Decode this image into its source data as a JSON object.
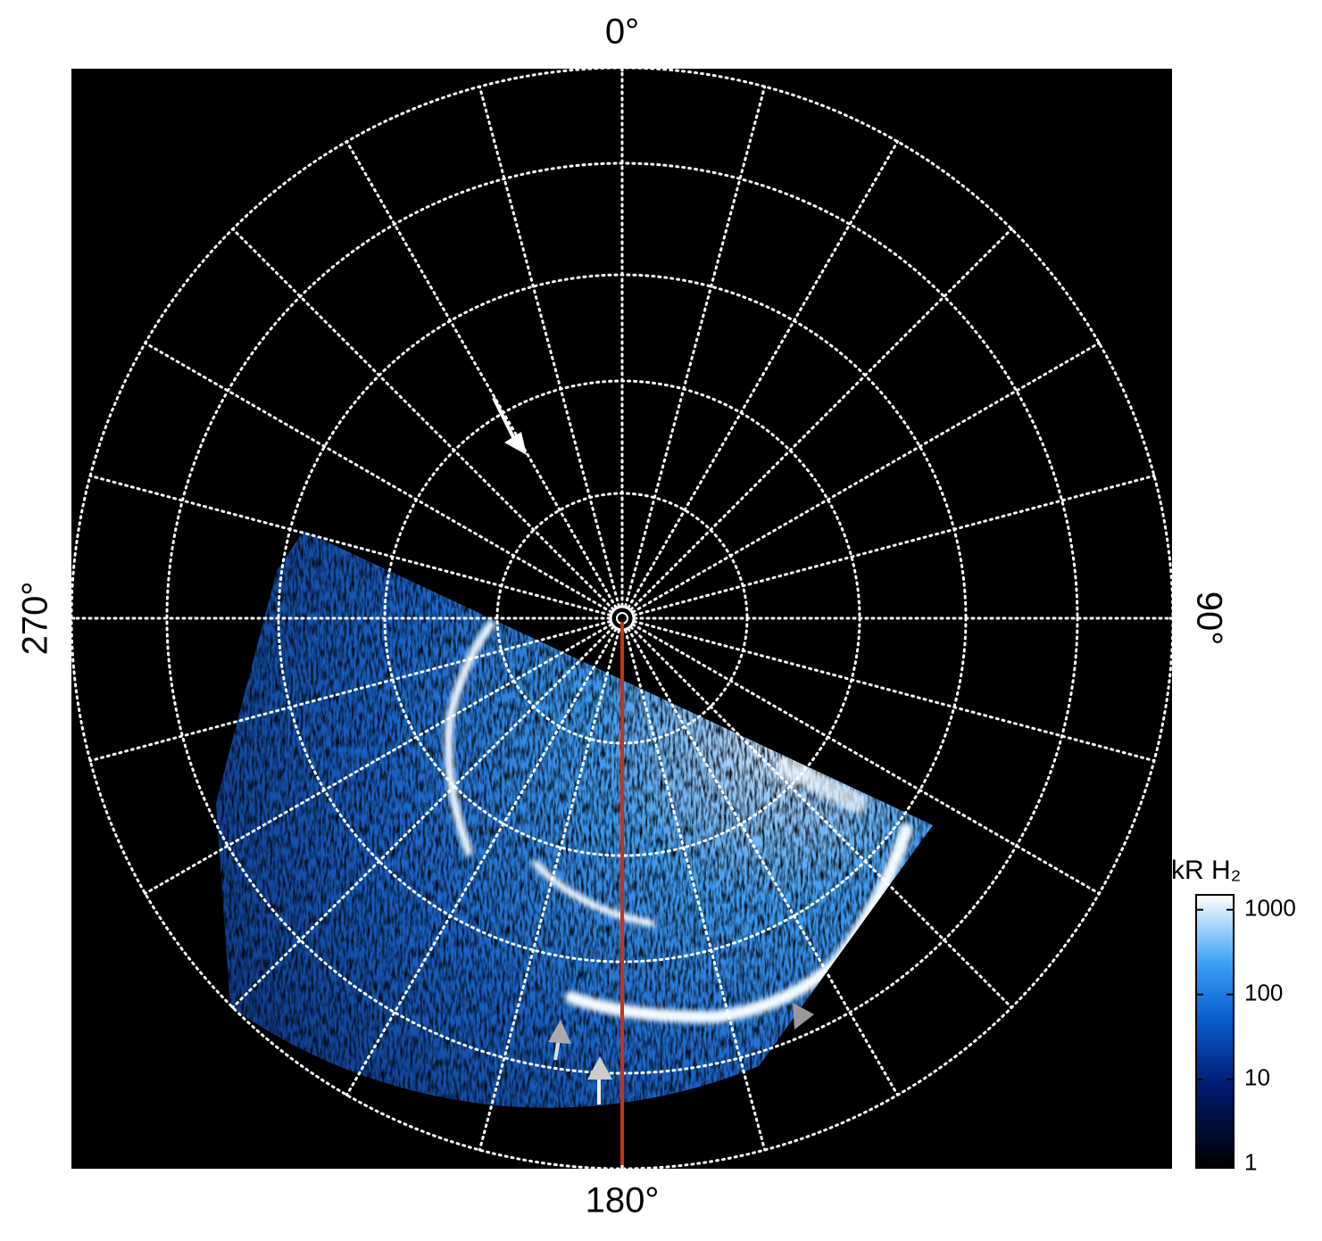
{
  "chart_data": {
    "type": "polar-image",
    "angle_ticks": [
      {
        "value": 0,
        "label": "0°"
      },
      {
        "value": 90,
        "label": "90°"
      },
      {
        "value": 180,
        "label": "180°"
      },
      {
        "value": 270,
        "label": "270°"
      }
    ],
    "colorbar": {
      "label": "kR H₂",
      "log": true,
      "lim": [
        0.9,
        1500
      ],
      "ticks": [
        1,
        10,
        100,
        1000
      ]
    }
  }
}
